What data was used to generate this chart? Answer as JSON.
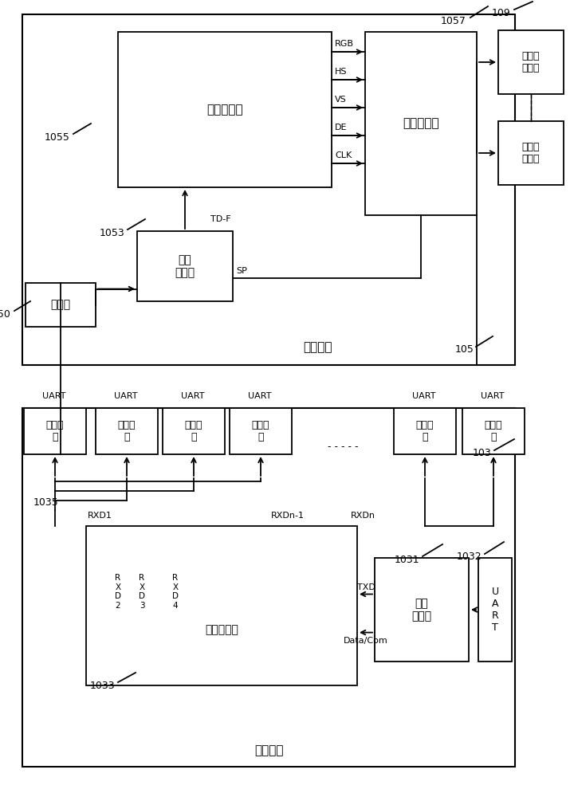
{
  "bg_color": "#ffffff",
  "line_color": "#000000",
  "top_panel_label": "子控制板",
  "bottom_panel_label": "主控制板",
  "ctrl4_label": "第四控制器",
  "ctrl3_label": "第三\n控制器",
  "signal_conv_label": "信号转换器",
  "input_port_label": "输入口",
  "lcd_module_label": "液晶显\n示模组",
  "ctrl2_label": "第二控制器",
  "ctrl1_label": "第一\n控制器",
  "uart_box_label": "U\nA\nR\nT",
  "output_port_label": "输出接\n口",
  "signals": [
    "RGB",
    "HS",
    "VS",
    "DE",
    "CLK"
  ]
}
